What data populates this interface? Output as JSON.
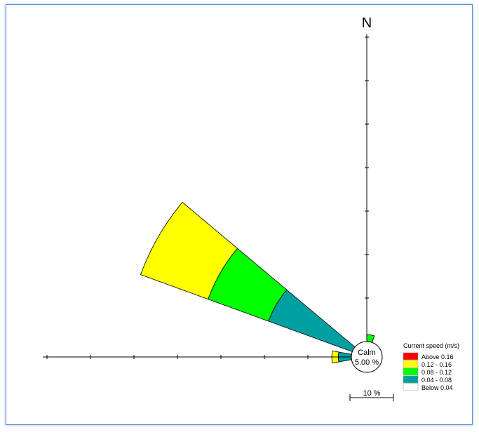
{
  "chart_data": {
    "type": "wind-rose",
    "north_label": "N",
    "calm": {
      "label": "Calm",
      "value": "5.00 %"
    },
    "scale_label": "10 %",
    "legend": {
      "title": "Current speed (m/s)",
      "items": [
        {
          "label": "Above 0.16",
          "color": "#ff0000"
        },
        {
          "label": "0.12 - 0.16",
          "color": "#ffff00"
        },
        {
          "label": "0.08 - 0.12",
          "color": "#00ff00"
        },
        {
          "label": "0.04 - 0.08",
          "color": "#00a0a0"
        },
        {
          "label": "Below 0.04",
          "color": "#ffffff"
        }
      ]
    },
    "sectors": [
      {
        "direction": 300,
        "half_width_deg": 10,
        "bins": [
          {
            "class": "0.04 - 0.08",
            "from": 0,
            "to": 20.5
          },
          {
            "class": "0.08 - 0.12",
            "from": 20.5,
            "to": 35.3
          },
          {
            "class": "0.12 - 0.16",
            "from": 35.3,
            "to": 51.8
          }
        ]
      },
      {
        "direction": 10,
        "half_width_deg": 10,
        "bins": [
          {
            "class": "0.08 - 0.12",
            "from": 0,
            "to": 1.6
          }
        ]
      },
      {
        "direction": 270,
        "half_width_deg": 10,
        "bins": [
          {
            "class": "0.04 - 0.08",
            "from": 0,
            "to": 3.0
          },
          {
            "class": "0.12 - 0.16",
            "from": 3.0,
            "to": 4.5
          }
        ]
      }
    ]
  }
}
